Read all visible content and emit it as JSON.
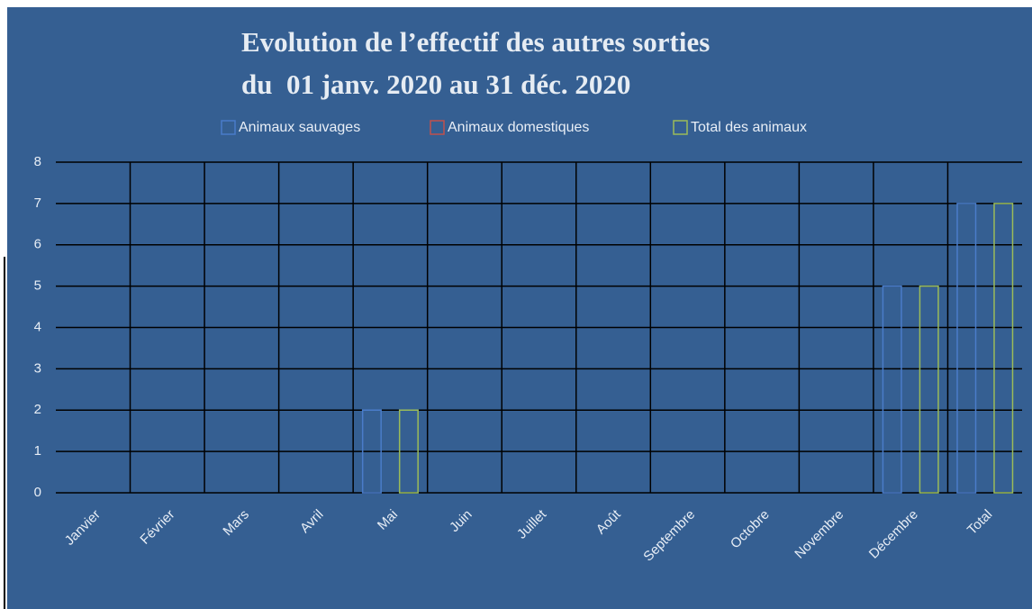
{
  "chart_data": {
    "type": "bar",
    "title": [
      "Evolution de l’effectif des autres sorties",
      "du  01 janv. 2020 au 31 déc. 2020"
    ],
    "categories": [
      "Janvier",
      "Février",
      "Mars",
      "Avril",
      "Mai",
      "Juin",
      "Juillet",
      "Août",
      "Septembre",
      "Octobre",
      "Novembre",
      "Décembre",
      "Total"
    ],
    "series": [
      {
        "name": "Animaux sauvages",
        "color": "#4a7cc9",
        "values": [
          0,
          0,
          0,
          0,
          2,
          0,
          0,
          0,
          0,
          0,
          0,
          5,
          7
        ]
      },
      {
        "name": "Animaux domestiques",
        "color": "#c0504d",
        "values": [
          0,
          0,
          0,
          0,
          0,
          0,
          0,
          0,
          0,
          0,
          0,
          0,
          0
        ]
      },
      {
        "name": "Total des animaux",
        "color": "#9bbb59",
        "values": [
          0,
          0,
          0,
          0,
          2,
          0,
          0,
          0,
          0,
          0,
          0,
          5,
          7
        ]
      }
    ],
    "ylim": [
      0,
      8
    ],
    "yticks": [
      0,
      1,
      2,
      3,
      4,
      5,
      6,
      7,
      8
    ],
    "grid": true,
    "legend": "top"
  }
}
